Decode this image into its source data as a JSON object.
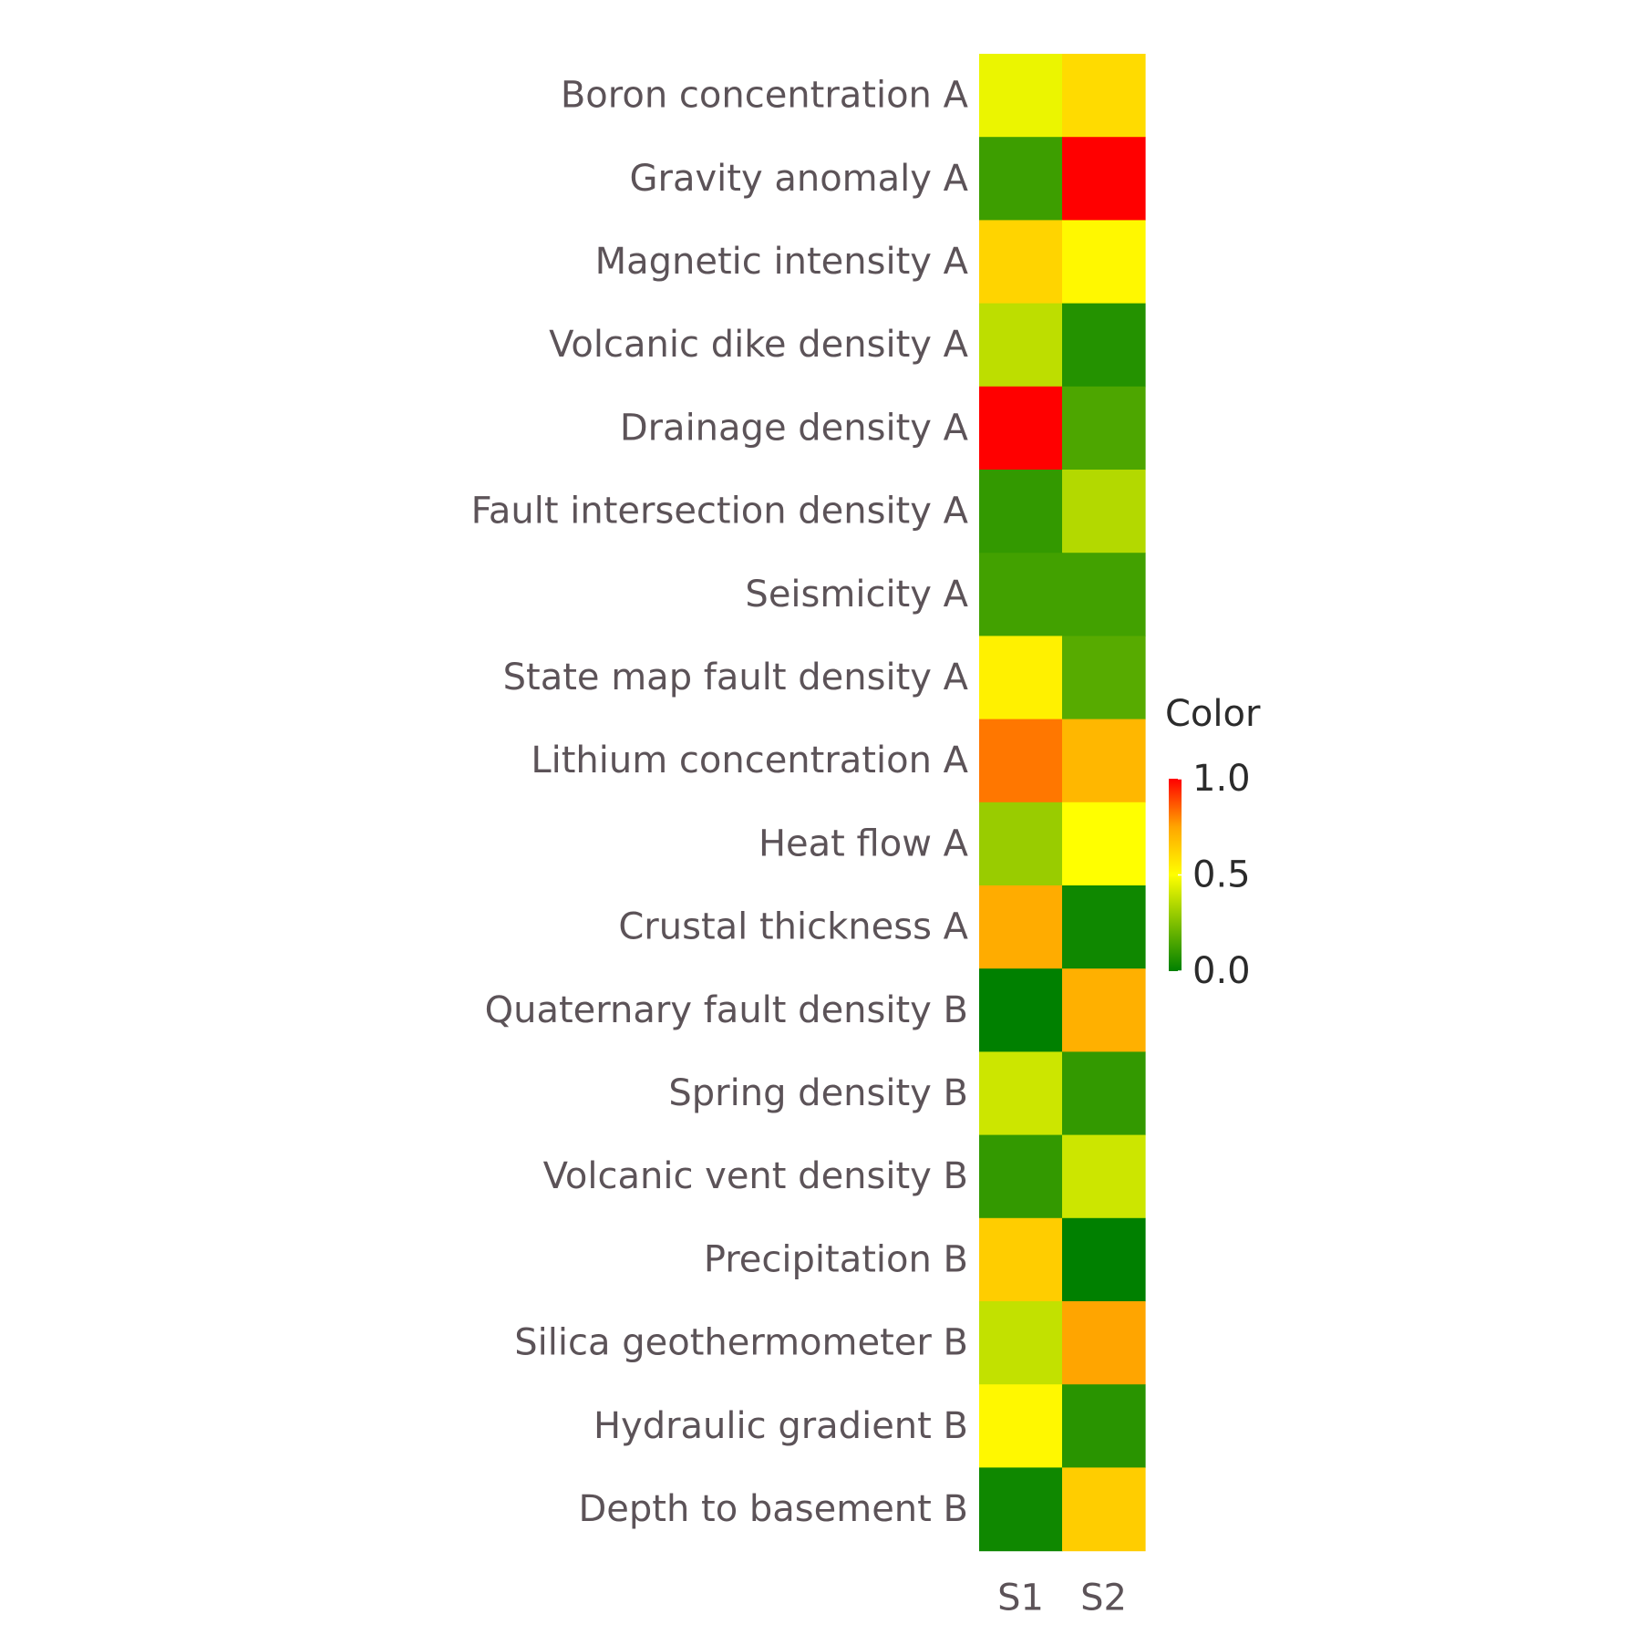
{
  "chart_data": {
    "type": "heatmap",
    "rows": [
      "Boron concentration A",
      "Gravity anomaly A",
      "Magnetic intensity A",
      "Volcanic dike density A",
      "Drainage density A",
      "Fault intersection density A",
      "Seismicity A",
      "State map fault density A",
      "Lithium concentration A",
      "Heat flow A",
      "Crustal thickness A",
      "Quaternary fault density B",
      "Spring density B",
      "Volcanic vent density B",
      "Precipitation B",
      "Silica geothermometer B",
      "Hydraulic gradient B",
      "Depth to basement B"
    ],
    "columns": [
      "S1",
      "S2"
    ],
    "values": [
      [
        0.46,
        0.6
      ],
      [
        0.12,
        1.0
      ],
      [
        0.62,
        0.52
      ],
      [
        0.37,
        0.07
      ],
      [
        1.0,
        0.15
      ],
      [
        0.1,
        0.35
      ],
      [
        0.13,
        0.13
      ],
      [
        0.54,
        0.17
      ],
      [
        0.82,
        0.7
      ],
      [
        0.3,
        0.5
      ],
      [
        0.73,
        0.03
      ],
      [
        0.0,
        0.72
      ],
      [
        0.4,
        0.1
      ],
      [
        0.1,
        0.4
      ],
      [
        0.64,
        0.0
      ],
      [
        0.38,
        0.75
      ],
      [
        0.52,
        0.08
      ],
      [
        0.03,
        0.64
      ]
    ],
    "legend": {
      "title": "Color",
      "ticks": [
        "1.0",
        "0.5",
        "0.0"
      ],
      "tick_values": [
        1.0,
        0.5,
        0.0
      ],
      "range": [
        0,
        1
      ],
      "placement": "right"
    },
    "colorscale": [
      [
        0.0,
        "#008000"
      ],
      [
        0.5,
        "#ffff00"
      ],
      [
        0.75,
        "#ffa500"
      ],
      [
        1.0,
        "#ff0000"
      ]
    ],
    "grid": false
  }
}
